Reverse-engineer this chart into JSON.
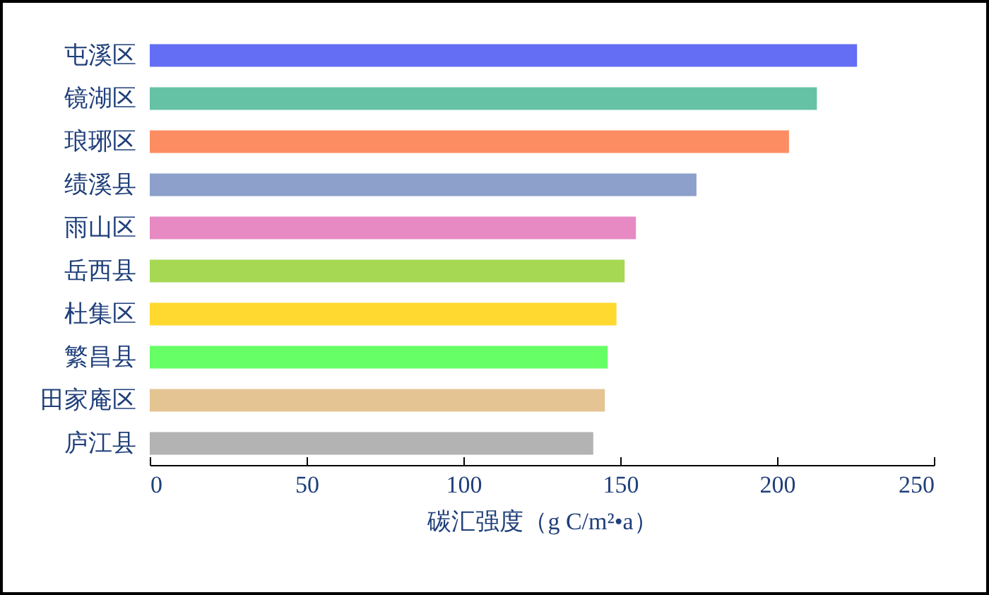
{
  "chart_data": {
    "type": "bar",
    "orientation": "horizontal",
    "xlabel": "碳汇强度（g C/m²•a）",
    "categories": [
      "屯溪区",
      "镜湖区",
      "琅琊区",
      "绩溪县",
      "雨山区",
      "岳西县",
      "杜集区",
      "繁昌县",
      "田家庵区",
      "庐江县"
    ],
    "values": [
      225.5,
      212.7,
      203.8,
      174.3,
      155,
      151.4,
      148.8,
      146,
      145.1,
      141.4
    ],
    "colors": [
      "#636ef5",
      "#66c2a5",
      "#fc8d62",
      "#8da0cb",
      "#e78ac3",
      "#a6d854",
      "#ffd92f",
      "#66ff66",
      "#e5c494",
      "#b3b3b3"
    ],
    "xlim": [
      0,
      250
    ],
    "xticks": [
      0,
      50,
      100,
      150,
      200,
      250
    ],
    "grid": false
  }
}
